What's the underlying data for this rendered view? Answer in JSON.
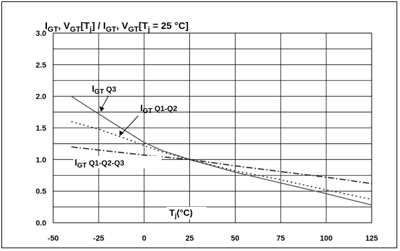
{
  "chart_data": {
    "type": "line",
    "xlim": [
      -50,
      125
    ],
    "ylim": [
      0.0,
      3.0
    ],
    "x_ticks": [
      "-50",
      "-25",
      "0",
      "25",
      "50",
      "75",
      "100",
      "125"
    ],
    "y_ticks": [
      "0.0",
      "0.5",
      "1.0",
      "1.5",
      "2.0",
      "2.5",
      "3.0"
    ],
    "x_minor_grid_step": 25,
    "y_minor_grid_step": 0.25,
    "grid": true,
    "title": {
      "main": "I",
      "sub1": "GT",
      "mid": ", V",
      "sub2": "GT",
      "mid2": "[T",
      "sub3": "j",
      "mid3": "] / I",
      "sub4": "GT",
      "mid4": ", V",
      "sub5": "GT",
      "mid5": "[T",
      "sub6": "j",
      "end": " = 25 °C]"
    },
    "xlabel": {
      "main": "T",
      "sub": "j",
      "end": "(°C)"
    },
    "series": [
      {
        "name": {
          "main": "I",
          "sub": "GT",
          "rest": " Q3"
        },
        "style": "solid",
        "color": "#555555",
        "points": [
          [
            -40,
            2.0
          ],
          [
            -25,
            1.72
          ],
          [
            -10,
            1.45
          ],
          [
            0,
            1.27
          ],
          [
            10,
            1.14
          ],
          [
            25,
            1.0
          ],
          [
            50,
            0.8
          ],
          [
            75,
            0.63
          ],
          [
            100,
            0.46
          ],
          [
            125,
            0.28
          ]
        ]
      },
      {
        "name": {
          "main": "I",
          "sub": "GT",
          "rest": " Q1-Q2"
        },
        "style": "dotted",
        "color": "#222222",
        "points": [
          [
            -40,
            1.6
          ],
          [
            -25,
            1.48
          ],
          [
            -10,
            1.33
          ],
          [
            0,
            1.22
          ],
          [
            10,
            1.12
          ],
          [
            25,
            1.0
          ],
          [
            50,
            0.82
          ],
          [
            75,
            0.68
          ],
          [
            100,
            0.52
          ],
          [
            125,
            0.37
          ]
        ]
      },
      {
        "name": {
          "main": "I",
          "sub": "GT",
          "rest": " Q1-Q2-Q3"
        },
        "style": "dashdot",
        "color": "#222222",
        "points": [
          [
            -40,
            1.2
          ],
          [
            -25,
            1.15
          ],
          [
            0,
            1.07
          ],
          [
            25,
            1.0
          ],
          [
            50,
            0.9
          ],
          [
            75,
            0.81
          ],
          [
            100,
            0.72
          ],
          [
            125,
            0.62
          ]
        ]
      }
    ]
  }
}
